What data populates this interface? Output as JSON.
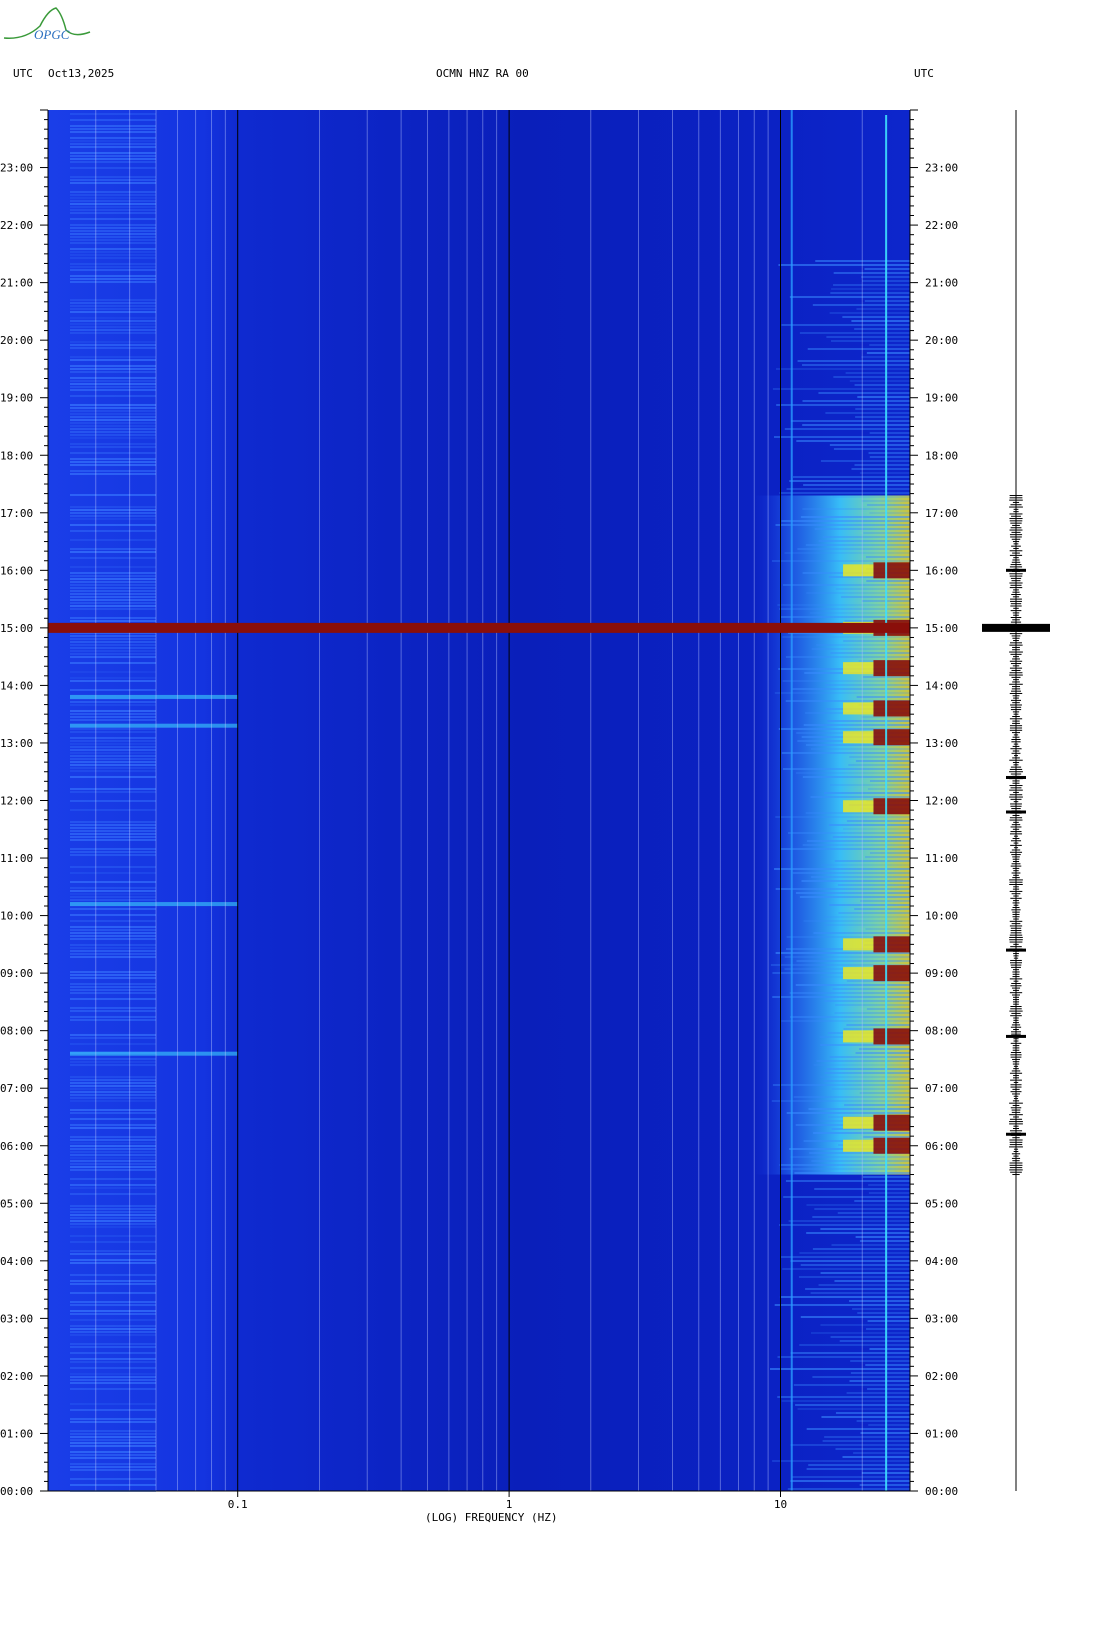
{
  "logo": {
    "text": "OPGC",
    "icon": "opgc-logo-icon"
  },
  "header": {
    "left_timezone": "UTC",
    "date": "Oct13,2025",
    "station": "OCMN HNZ RA 00",
    "right_timezone": "UTC"
  },
  "colors": {
    "background_blue": "#1020c8",
    "deep_blue": "#0a1ab0",
    "hot_red": "#8a0f0a",
    "cyan": "#3fe0ff",
    "yellow": "#f2e81c",
    "trace": "#000000"
  },
  "chart_data": {
    "type": "heatmap",
    "title": "OCMN HNZ RA 00",
    "xlabel": "(LOG) FREQUENCY (HZ)",
    "ylabel": "",
    "x_scale": "log",
    "xlim": [
      0.02,
      30
    ],
    "x_ticks": [
      {
        "value": 0.1,
        "label": "0.1"
      },
      {
        "value": 1,
        "label": "1"
      },
      {
        "value": 10,
        "label": "10"
      }
    ],
    "ylim_hours": [
      0,
      24
    ],
    "y_ticks": [
      {
        "hour": 0,
        "label": "00:00"
      },
      {
        "hour": 1,
        "label": "01:00"
      },
      {
        "hour": 2,
        "label": "02:00"
      },
      {
        "hour": 3,
        "label": "03:00"
      },
      {
        "hour": 4,
        "label": "04:00"
      },
      {
        "hour": 5,
        "label": "05:00"
      },
      {
        "hour": 6,
        "label": "06:00"
      },
      {
        "hour": 7,
        "label": "07:00"
      },
      {
        "hour": 8,
        "label": "08:00"
      },
      {
        "hour": 9,
        "label": "09:00"
      },
      {
        "hour": 10,
        "label": "10:00"
      },
      {
        "hour": 11,
        "label": "11:00"
      },
      {
        "hour": 12,
        "label": "12:00"
      },
      {
        "hour": 13,
        "label": "13:00"
      },
      {
        "hour": 14,
        "label": "14:00"
      },
      {
        "hour": 15,
        "label": "15:00"
      },
      {
        "hour": 16,
        "label": "16:00"
      },
      {
        "hour": 17,
        "label": "17:00"
      },
      {
        "hour": 18,
        "label": "18:00"
      },
      {
        "hour": 19,
        "label": "19:00"
      },
      {
        "hour": 20,
        "label": "20:00"
      },
      {
        "hour": 21,
        "label": "21:00"
      },
      {
        "hour": 22,
        "label": "22:00"
      },
      {
        "hour": 23,
        "label": "23:00"
      }
    ],
    "decade_lines": [
      0.1,
      1,
      10
    ],
    "minor_lines": [
      0.03,
      0.04,
      0.05,
      0.06,
      0.07,
      0.08,
      0.09,
      0.2,
      0.3,
      0.4,
      0.5,
      0.6,
      0.7,
      0.8,
      0.9,
      2,
      3,
      4,
      5,
      6,
      7,
      8,
      9,
      20,
      30
    ],
    "high_energy_band": {
      "hour": 15,
      "color": "hot_red"
    },
    "active_periods_high_freq_hours": [
      [
        5.5,
        17.3
      ]
    ],
    "strong_bursts_hours": [
      6.0,
      6.4,
      7.9,
      9.0,
      9.5,
      11.9,
      13.1,
      13.6,
      14.3,
      15.0,
      16.0
    ],
    "seismogram_events_hours": [
      6.2,
      7.9,
      9.4,
      11.8,
      12.4,
      15.0,
      16.0
    ]
  }
}
